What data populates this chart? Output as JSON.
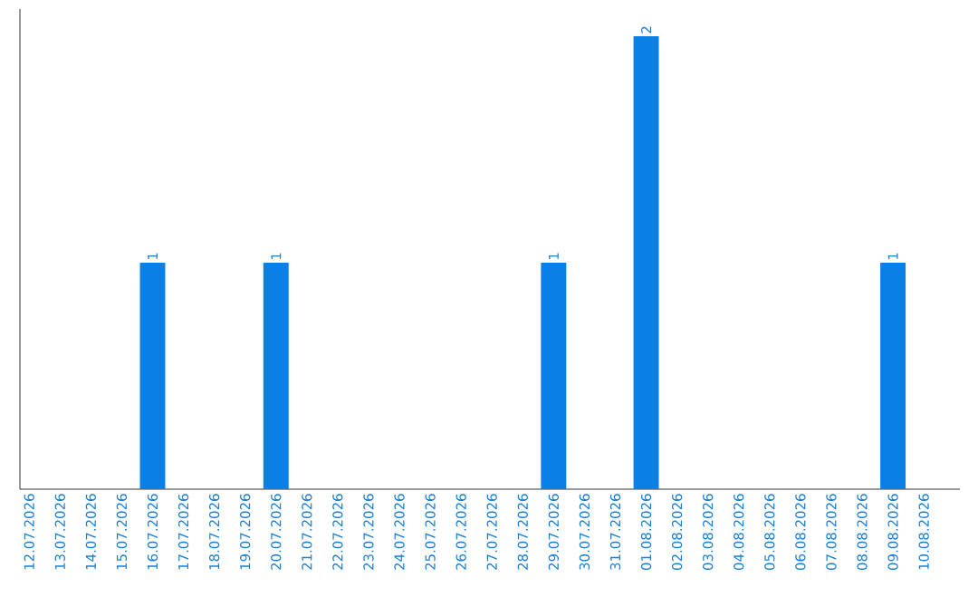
{
  "chart_data": {
    "type": "bar",
    "categories": [
      "12.07.2026",
      "13.07.2026",
      "14.07.2026",
      "15.07.2026",
      "16.07.2026",
      "17.07.2026",
      "18.07.2026",
      "19.07.2026",
      "20.07.2026",
      "21.07.2026",
      "22.07.2026",
      "23.07.2026",
      "24.07.2026",
      "25.07.2026",
      "26.07.2026",
      "27.07.2026",
      "28.07.2026",
      "29.07.2026",
      "30.07.2026",
      "31.07.2026",
      "01.08.2026",
      "02.08.2026",
      "03.08.2026",
      "04.08.2026",
      "05.08.2026",
      "06.08.2026",
      "07.08.2026",
      "08.08.2026",
      "09.08.2026",
      "10.08.2026"
    ],
    "values": [
      0,
      0,
      0,
      0,
      1,
      0,
      0,
      0,
      1,
      0,
      0,
      0,
      0,
      0,
      0,
      0,
      0,
      1,
      0,
      0,
      2,
      0,
      0,
      0,
      0,
      0,
      0,
      0,
      1,
      0
    ],
    "value_labels": [
      null,
      null,
      null,
      null,
      "1",
      null,
      null,
      null,
      "1",
      null,
      null,
      null,
      null,
      null,
      null,
      null,
      null,
      "1",
      null,
      null,
      "2",
      null,
      null,
      null,
      null,
      null,
      null,
      null,
      "1",
      null
    ],
    "color": "#0a7fe6",
    "ylim": [
      0,
      2.12
    ],
    "tick_labels": "x",
    "grid": false
  }
}
